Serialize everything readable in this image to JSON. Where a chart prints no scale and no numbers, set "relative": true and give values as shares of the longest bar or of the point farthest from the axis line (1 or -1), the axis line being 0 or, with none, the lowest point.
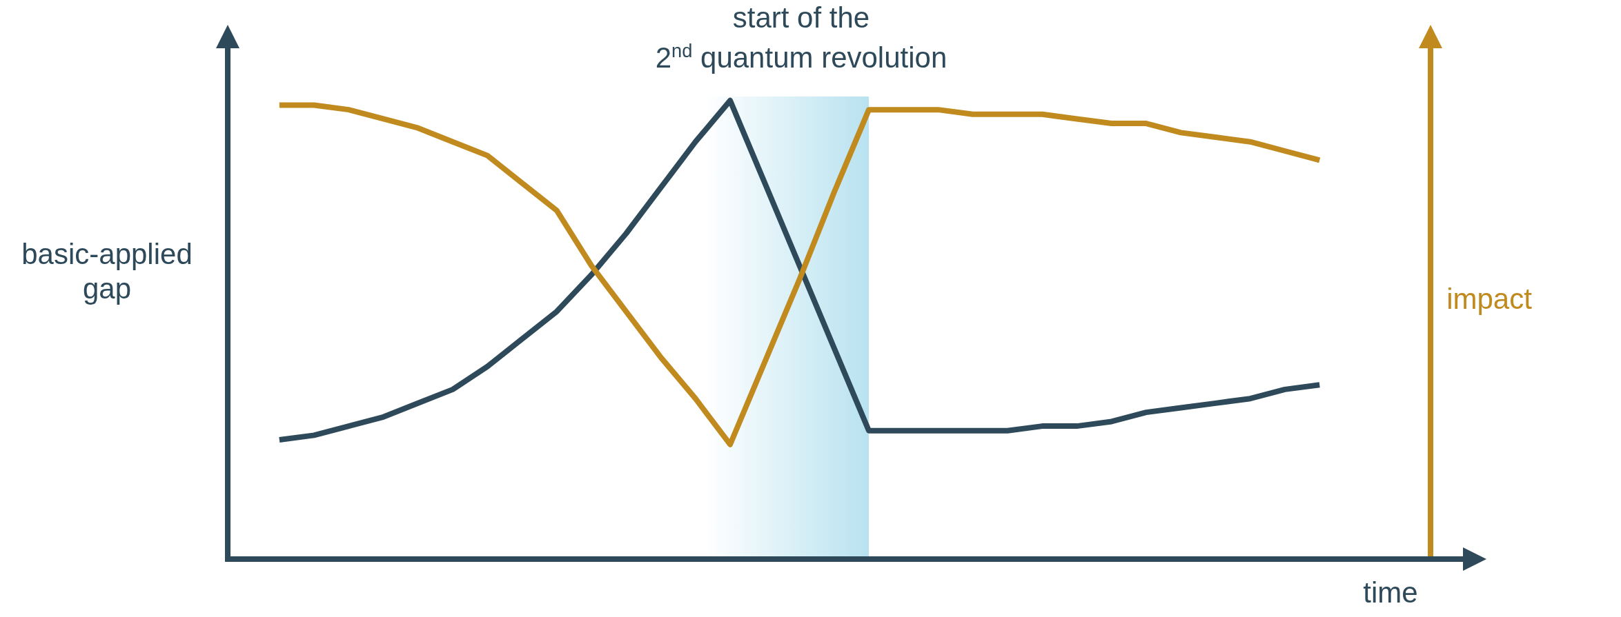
{
  "chart_data": {
    "type": "line",
    "relative": true,
    "categories": [
      null,
      null,
      null,
      null,
      null,
      null,
      null,
      null,
      null,
      null,
      null,
      null,
      null,
      null,
      null,
      null,
      null,
      null,
      null,
      null,
      null,
      null,
      null,
      null,
      null,
      null,
      null,
      null,
      null,
      null,
      null
    ],
    "series": [
      {
        "color": "#2e4a5a",
        "values": [
          0.26,
          0.27,
          0.29,
          0.31,
          0.34,
          0.37,
          0.42,
          0.48,
          0.54,
          0.62,
          0.71,
          0.81,
          0.91,
          1,
          0.82,
          0.64,
          0.46,
          0.28,
          0.28,
          0.28,
          0.28,
          0.28,
          0.29,
          0.29,
          0.3,
          0.32,
          0.33,
          0.34,
          0.35,
          0.37,
          0.38
        ]
      },
      {
        "color": "#c08a1e",
        "values": [
          0.99,
          0.99,
          0.98,
          0.96,
          0.94,
          0.91,
          0.88,
          0.82,
          0.76,
          0.64,
          0.54,
          0.44,
          0.35,
          0.25,
          0.43,
          0.61,
          0.8,
          0.98,
          0.98,
          0.98,
          0.97,
          0.97,
          0.97,
          0.96,
          0.95,
          0.95,
          0.93,
          0.92,
          0.91,
          0.89,
          0.87
        ]
      }
    ],
    "ylabel": "basic-applied gap",
    "y2label": "impact",
    "xlabel": "time",
    "annotations": [
      "start of the\n2$^{nd}$ quantum revolution"
    ]
  }
}
